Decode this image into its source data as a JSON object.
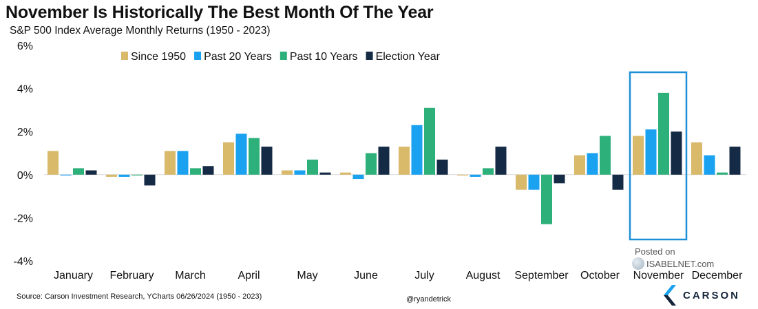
{
  "title": "November Is Historically The Best Month Of The Year",
  "subtitle": "S&P 500 Index Average Monthly Returns (1950 - 2023)",
  "source": "Source: Carson Investment Research, YCharts 06/26/2024 (1950 - 2023)",
  "handle": "@ryandetrick",
  "watermark": {
    "posted": "Posted on",
    "site": "ISABELNET.com",
    "icon": "globe-icon"
  },
  "brand": {
    "name": "CARSON",
    "icon": "carson-logo-icon"
  },
  "chart_data": {
    "type": "bar",
    "categories": [
      "January",
      "February",
      "March",
      "April",
      "May",
      "June",
      "July",
      "August",
      "September",
      "October",
      "November",
      "December"
    ],
    "series": [
      {
        "name": "Since 1950",
        "color": "#d9b96a",
        "values": [
          1.1,
          -0.1,
          1.1,
          1.5,
          0.2,
          0.1,
          1.3,
          0.0,
          -0.7,
          0.9,
          1.8,
          1.5
        ]
      },
      {
        "name": "Past 20 Years",
        "color": "#1aa2f0",
        "values": [
          0.0,
          -0.1,
          1.1,
          1.9,
          0.2,
          -0.2,
          2.3,
          -0.1,
          -0.7,
          1.0,
          2.1,
          0.9
        ]
      },
      {
        "name": "Past 10 Years",
        "color": "#2eb07a",
        "values": [
          0.3,
          0.0,
          0.3,
          1.7,
          0.7,
          1.0,
          3.1,
          0.3,
          -2.3,
          1.8,
          3.8,
          0.1
        ]
      },
      {
        "name": "Election Year",
        "color": "#152a45",
        "values": [
          0.2,
          -0.5,
          0.4,
          1.3,
          0.1,
          1.3,
          0.7,
          1.3,
          -0.4,
          -0.7,
          2.0,
          1.3
        ]
      }
    ],
    "y_ticks": [
      "6%",
      "4%",
      "2%",
      "0%",
      "-2%",
      "-4%"
    ],
    "ylim": [
      -4,
      6
    ],
    "grid": false,
    "legend": "top",
    "highlight": "November"
  }
}
